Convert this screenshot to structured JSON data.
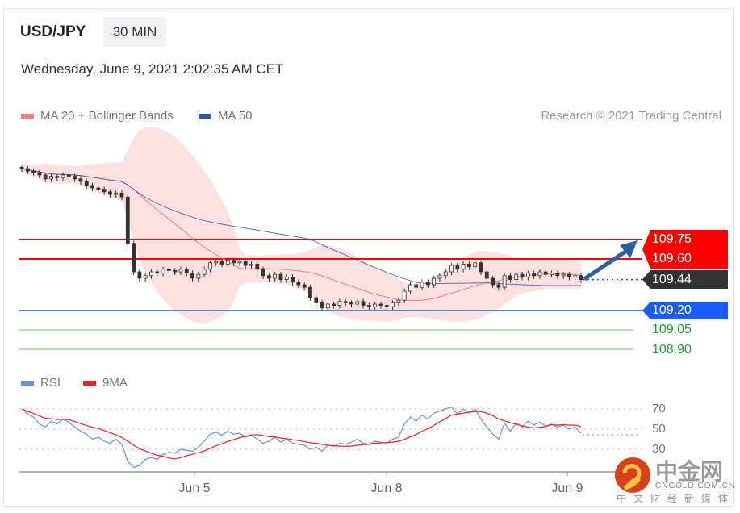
{
  "header": {
    "symbol": "USD/JPY",
    "timeframe": "30 MIN",
    "datetime": "Wednesday, June 9, 2021 2:02:35 AM CET"
  },
  "legend": {
    "ma20": "MA 20 + Bollinger Bands",
    "ma50": "MA 50",
    "rsi": "RSI",
    "ma9": "9MA",
    "source": "Research © 2021 Trading Central"
  },
  "colors": {
    "resistance": "#ff0000",
    "support": "#1a5cff",
    "current": "#333333",
    "targets": "#2a9a2a",
    "ma20": "#f08080",
    "ma50": "#2c5aa0",
    "rsi": "#6b8fe0",
    "ma9": "#ff2020",
    "arrow": "#2c5fa0"
  },
  "chart_data": [
    {
      "type": "candlestick",
      "title": "USD/JPY",
      "x_labels": [
        "Jun 5",
        "Jun 8",
        "Jun 9"
      ],
      "levels": {
        "resistance": [
          109.75,
          109.6
        ],
        "current": 109.44,
        "support": [
          109.2
        ],
        "targets": [
          109.05,
          108.9
        ]
      },
      "level_labels": {
        "r1": "109.75",
        "r2": "109.60",
        "current": "109.44",
        "s1": "109.20",
        "t1": "109.05",
        "t2": "108.90"
      },
      "closes": [
        110.3,
        110.28,
        110.27,
        110.25,
        110.22,
        110.24,
        110.23,
        110.25,
        110.24,
        110.22,
        110.2,
        110.17,
        110.15,
        110.14,
        110.12,
        110.1,
        110.11,
        110.08,
        109.72,
        109.5,
        109.45,
        109.47,
        109.5,
        109.49,
        109.52,
        109.51,
        109.5,
        109.52,
        109.49,
        109.45,
        109.48,
        109.52,
        109.57,
        109.58,
        109.56,
        109.59,
        109.57,
        109.58,
        109.55,
        109.56,
        109.52,
        109.47,
        109.45,
        109.48,
        109.44,
        109.46,
        109.42,
        109.4,
        109.38,
        109.3,
        109.26,
        109.22,
        109.25,
        109.24,
        109.27,
        109.26,
        109.25,
        109.27,
        109.24,
        109.23,
        109.25,
        109.24,
        109.23,
        109.26,
        109.28,
        109.35,
        109.4,
        109.38,
        109.42,
        109.4,
        109.45,
        109.47,
        109.5,
        109.55,
        109.52,
        109.56,
        109.54,
        109.57,
        109.5,
        109.45,
        109.4,
        109.38,
        109.47,
        109.44,
        109.48,
        109.46,
        109.49,
        109.47,
        109.5,
        109.48,
        109.49,
        109.47,
        109.48,
        109.46,
        109.47,
        109.44
      ],
      "forecast": "up to 109.75"
    },
    {
      "type": "line",
      "title": "RSI",
      "yticks": [
        70,
        50,
        30
      ],
      "tick_labels": {
        "t70": "70",
        "t50": "50",
        "t30": "30"
      },
      "rsi": [
        70,
        65,
        62,
        55,
        52,
        58,
        55,
        60,
        57,
        52,
        48,
        45,
        40,
        42,
        38,
        36,
        40,
        35,
        18,
        12,
        14,
        20,
        22,
        20,
        25,
        27,
        26,
        30,
        29,
        28,
        32,
        38,
        45,
        47,
        44,
        48,
        45,
        46,
        42,
        44,
        40,
        36,
        38,
        42,
        37,
        40,
        36,
        35,
        34,
        30,
        32,
        28,
        34,
        33,
        36,
        35,
        37,
        40,
        36,
        35,
        38,
        37,
        36,
        40,
        42,
        55,
        62,
        58,
        64,
        60,
        66,
        68,
        70,
        72,
        65,
        70,
        66,
        70,
        60,
        52,
        45,
        40,
        56,
        48,
        56,
        52,
        58,
        54,
        57,
        53,
        55,
        52,
        54,
        50,
        52,
        46
      ]
    }
  ],
  "watermark": {
    "cn": "中金网",
    "en": "CNGOLD.COM.CN",
    "sub": "中文财经新媒体"
  }
}
